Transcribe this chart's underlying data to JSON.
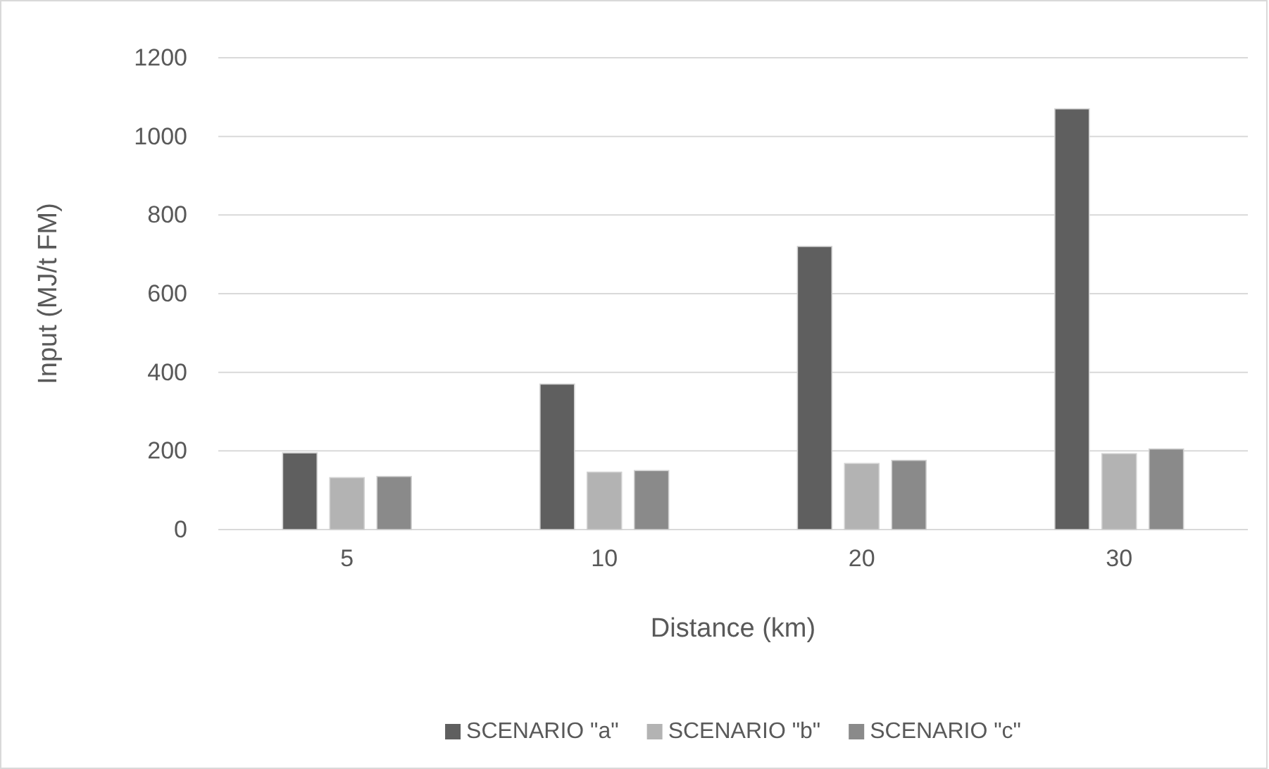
{
  "chart_data": {
    "type": "bar",
    "xlabel": "Distance (km)",
    "ylabel": "Input (MJ/t FM)",
    "categories": [
      "5",
      "10",
      "20",
      "30"
    ],
    "series": [
      {
        "name": "SCENARIO \"a\"",
        "color": "#5f5f5f",
        "values": [
          195,
          370,
          720,
          1070
        ]
      },
      {
        "name": "SCENARIO \"b\"",
        "color": "#b3b3b3",
        "values": [
          132,
          146,
          168,
          193
        ]
      },
      {
        "name": "SCENARIO \"c\"",
        "color": "#8a8a8a",
        "values": [
          135,
          150,
          176,
          205
        ]
      }
    ],
    "ylim": [
      0,
      1200
    ],
    "yticks": [
      0,
      200,
      400,
      600,
      800,
      1000,
      1200
    ],
    "grid": "y",
    "legend": "bottom"
  }
}
